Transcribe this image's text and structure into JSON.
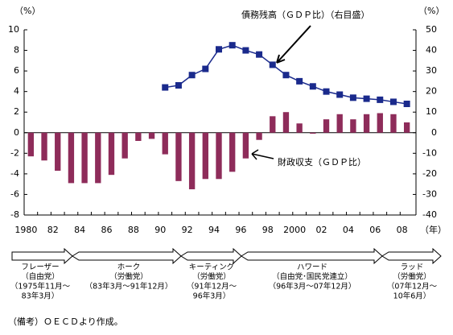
{
  "chart_data": {
    "type": "bar",
    "categories": [
      "1980",
      null,
      "82",
      null,
      "84",
      null,
      "86",
      null,
      "88",
      null,
      "90",
      null,
      "92",
      null,
      "94",
      null,
      "96",
      null,
      "98",
      null,
      "2000",
      null,
      "02",
      null,
      "04",
      null,
      "06",
      null,
      "08"
    ],
    "series": [
      {
        "name": "財政収支（ＧＤＰ比）",
        "type": "bar",
        "color": "#8e2c5a",
        "values": [
          -2.3,
          -2.7,
          -3.7,
          -4.9,
          -4.9,
          -4.9,
          -4.1,
          -2.5,
          -0.8,
          -0.6,
          -2.1,
          -4.7,
          -5.5,
          -4.5,
          -4.5,
          -3.8,
          -2.5,
          -0.7,
          1.6,
          2.0,
          0.9,
          -0.1,
          1.3,
          1.8,
          1.3,
          1.8,
          1.9,
          1.8,
          1.0
        ]
      },
      {
        "name": "債務残高（ＧＤＰ比）（右目盛）",
        "type": "line",
        "axis": "y2",
        "color": "#1a2a8c",
        "values": [
          null,
          null,
          null,
          null,
          null,
          null,
          null,
          null,
          null,
          null,
          22,
          23,
          28,
          31,
          40.5,
          42.5,
          40,
          38,
          33,
          28,
          25,
          22.5,
          20,
          18.5,
          17,
          16.5,
          16,
          15,
          14
        ]
      }
    ],
    "ylim": [
      -8,
      10
    ],
    "yticks": [
      10,
      8,
      6,
      4,
      2,
      0,
      -2,
      -4,
      -6,
      -8
    ],
    "y2lim": [
      -40,
      50
    ],
    "y2ticks": [
      50,
      40,
      30,
      20,
      10,
      0,
      -10,
      -20,
      -30,
      -40
    ],
    "y_unit": "（%）",
    "y2_unit": "（%）",
    "x_unit": "（年）",
    "grid": false
  },
  "timeline": [
    {
      "lines": [
        "フレーザー",
        "（自由党）",
        "（1975年11月～",
        "83年3月）"
      ]
    },
    {
      "lines": [
        "ホーク",
        "（労働党）",
        "（83年3月～91年12月）"
      ]
    },
    {
      "lines": [
        "キーティング",
        "（労働党）",
        "（91年12月～",
        "96年3月）"
      ]
    },
    {
      "lines": [
        "ハワード",
        "（自由党･国民党連立）",
        "（96年3月～07年12月）"
      ]
    },
    {
      "lines": [
        "ラッド",
        "（労働党）",
        "（07年12月～",
        "10年6月）"
      ]
    }
  ],
  "note": "（備考）ＯＥＣＤより作成。"
}
